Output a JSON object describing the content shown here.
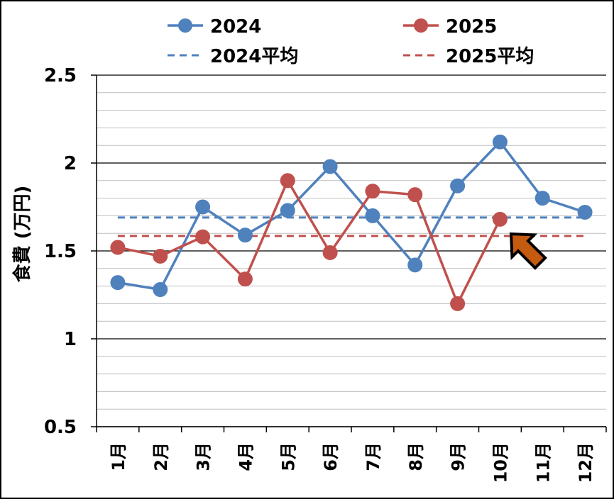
{
  "chart_data": {
    "type": "line",
    "ylabel": "食費 (万円)",
    "ylim": [
      0.5,
      2.5
    ],
    "yticks": [
      "0.5",
      "1",
      "1.5",
      "2",
      "2.5"
    ],
    "categories": [
      "1月",
      "2月",
      "3月",
      "4月",
      "5月",
      "6月",
      "7月",
      "8月",
      "9月",
      "10月",
      "11月",
      "12月"
    ],
    "series": [
      {
        "name": "2024",
        "color": "#4f81bd",
        "style": "line-marker",
        "values": [
          1.32,
          1.28,
          1.75,
          1.59,
          1.73,
          1.98,
          1.7,
          1.42,
          1.87,
          2.12,
          1.8,
          1.72
        ]
      },
      {
        "name": "2025",
        "color": "#c0504d",
        "style": "line-marker",
        "values": [
          1.52,
          1.47,
          1.58,
          1.34,
          1.9,
          1.49,
          1.84,
          1.82,
          1.2,
          1.68,
          null,
          null
        ]
      },
      {
        "name": "2024平均",
        "color": "#4f81bd",
        "style": "dashed",
        "value": 1.69
      },
      {
        "name": "2025平均",
        "color": "#c0504d",
        "style": "dashed",
        "value": 1.585
      }
    ],
    "grid": true,
    "legend": "top",
    "annotation": {
      "type": "arrow",
      "color": "#c55a11",
      "points_to": "10月 2025"
    }
  }
}
